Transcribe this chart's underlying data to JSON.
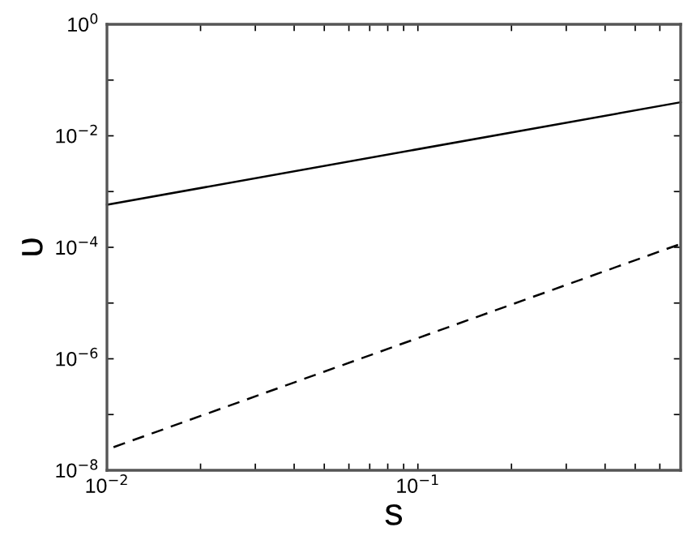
{
  "chart_data": {
    "type": "line",
    "xlabel": "s",
    "ylabel": "υ",
    "log": "xy",
    "grid": false,
    "legend": false,
    "series": [
      {
        "color": "#000000",
        "x": [
          0.01,
          0.7
        ],
        "values": [
          0.00058,
          0.04
        ],
        "line_style": "solid"
      },
      {
        "color": "#000000",
        "x": [
          0.0105,
          0.7
        ],
        "values": [
          2.6e-08,
          0.000115
        ],
        "line_style": "dashed"
      }
    ],
    "xlim": [
      0.01,
      0.7
    ],
    "xticks": [
      {
        "value": 0.01,
        "label": "10$^{−2}$"
      },
      {
        "value": 0.02,
        "label": null
      },
      {
        "value": 0.03,
        "label": null
      },
      {
        "value": 0.04,
        "label": null
      },
      {
        "value": 0.05,
        "label": null
      },
      {
        "value": 0.06,
        "label": null
      },
      {
        "value": 0.07,
        "label": null
      },
      {
        "value": 0.08,
        "label": null
      },
      {
        "value": 0.09,
        "label": null
      },
      {
        "value": 0.1,
        "label": "10$^{−1}$"
      },
      {
        "value": 0.2,
        "label": null
      },
      {
        "value": 0.3,
        "label": null
      },
      {
        "value": 0.4,
        "label": null
      },
      {
        "value": 0.5,
        "label": null
      },
      {
        "value": 0.6,
        "label": null
      }
    ],
    "ylim": [
      1e-08,
      1
    ],
    "yticks": [
      {
        "value": 1e-08,
        "label": "10$^{−8}$"
      },
      {
        "value": 1e-07,
        "label": null
      },
      {
        "value": 1e-06,
        "label": "10$^{−6}$"
      },
      {
        "value": 1e-05,
        "label": null
      },
      {
        "value": 0.0001,
        "label": "10$^{−4}$"
      },
      {
        "value": 0.001,
        "label": null
      },
      {
        "value": 0.01,
        "label": "10$^{−2}$"
      },
      {
        "value": 0.1,
        "label": null
      },
      {
        "value": 1,
        "label": "10$^{0}$"
      }
    ]
  }
}
